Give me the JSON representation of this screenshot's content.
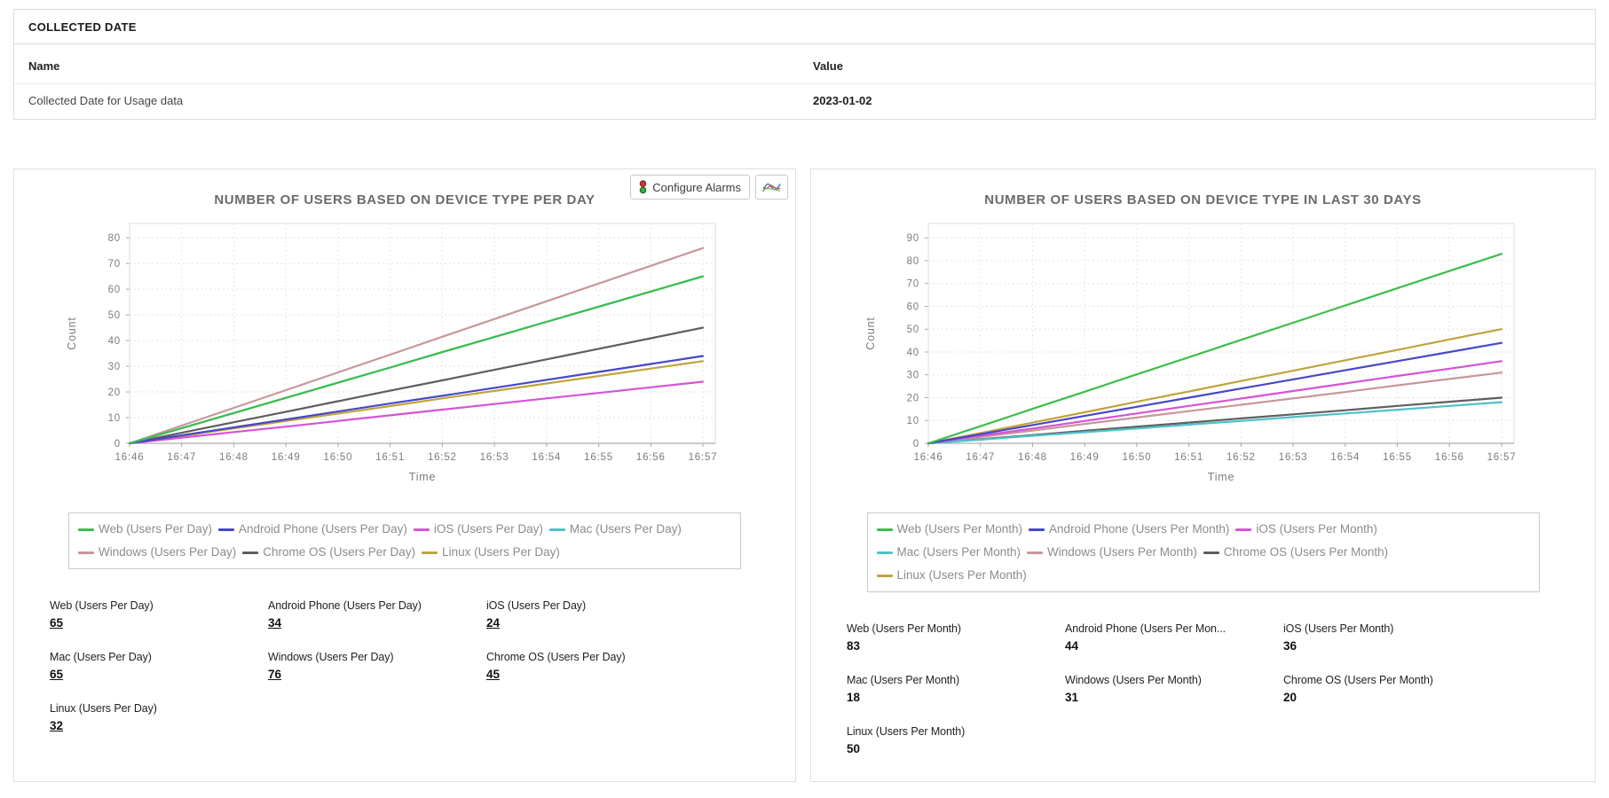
{
  "collected_date": {
    "title": "COLLECTED DATE",
    "name_header": "Name",
    "value_header": "Value",
    "row_name": "Collected Date for Usage data",
    "row_value": "2023-01-02"
  },
  "left_toolbar": {
    "configure_alarms_label": "Configure Alarms",
    "icons": [
      "traffic-light-icon",
      "line-chart-icon"
    ]
  },
  "chart_data": [
    {
      "type": "line",
      "title": "NUMBER OF USERS BASED ON DEVICE TYPE PER DAY",
      "xlabel": "Time",
      "ylabel": "Count",
      "x": [
        "16:46",
        "16:47",
        "16:48",
        "16:49",
        "16:50",
        "16:51",
        "16:52",
        "16:53",
        "16:54",
        "16:55",
        "16:56",
        "16:57"
      ],
      "ylim": [
        0,
        80
      ],
      "yticks": [
        0,
        10,
        20,
        30,
        40,
        50,
        60,
        70,
        80
      ],
      "grid": true,
      "legend_position": "bottom",
      "series": [
        {
          "name": "Web (Users Per Day)",
          "color": "#3dbd4d",
          "values": [
            0,
            5.9,
            11.8,
            17.7,
            23.6,
            29.5,
            35.5,
            41.4,
            47.3,
            53.2,
            59.1,
            65
          ]
        },
        {
          "name": "Android Phone (Users Per Day)",
          "color": "#4648c8",
          "values": [
            0,
            3.1,
            6.2,
            9.3,
            12.4,
            15.5,
            18.5,
            21.6,
            24.7,
            27.8,
            30.9,
            34
          ]
        },
        {
          "name": "iOS (Users Per Day)",
          "color": "#d653d6",
          "values": [
            0,
            2.2,
            4.4,
            6.5,
            8.7,
            10.9,
            13.1,
            15.3,
            17.5,
            19.6,
            21.8,
            24
          ]
        },
        {
          "name": "Mac (Users Per Day)",
          "color": "#4cc3c7",
          "values": [
            0,
            5.9,
            11.8,
            17.7,
            23.6,
            29.5,
            35.5,
            41.4,
            47.3,
            53.2,
            59.1,
            65
          ]
        },
        {
          "name": "Windows (Users Per Day)",
          "color": "#c7979a",
          "values": [
            0,
            6.9,
            13.8,
            20.7,
            27.6,
            34.5,
            41.5,
            48.4,
            55.3,
            62.2,
            69.1,
            76
          ]
        },
        {
          "name": "Chrome OS (Users Per Day)",
          "color": "#5e5e5e",
          "values": [
            0,
            4.1,
            8.2,
            12.3,
            16.4,
            20.5,
            24.5,
            28.6,
            32.7,
            36.8,
            40.9,
            45
          ]
        },
        {
          "name": "Linux (Users Per Day)",
          "color": "#c0a43c",
          "values": [
            0,
            2.9,
            5.8,
            8.7,
            11.6,
            14.5,
            17.5,
            20.4,
            23.3,
            26.2,
            29.1,
            32
          ]
        }
      ],
      "stats_underlined": true,
      "stats": [
        {
          "label": "Web (Users Per Day)",
          "value": "65"
        },
        {
          "label": "Android Phone (Users Per Day)",
          "value": "34"
        },
        {
          "label": "iOS (Users Per Day)",
          "value": "24"
        },
        {
          "label": "Mac (Users Per Day)",
          "value": "65"
        },
        {
          "label": "Windows (Users Per Day)",
          "value": "76"
        },
        {
          "label": "Chrome OS (Users Per Day)",
          "value": "45"
        },
        {
          "label": "Linux (Users Per Day)",
          "value": "32"
        }
      ]
    },
    {
      "type": "line",
      "title": "NUMBER OF USERS BASED ON DEVICE TYPE IN LAST 30 DAYS",
      "xlabel": "Time",
      "ylabel": "Count",
      "x": [
        "16:46",
        "16:47",
        "16:48",
        "16:49",
        "16:50",
        "16:51",
        "16:52",
        "16:53",
        "16:54",
        "16:55",
        "16:56",
        "16:57"
      ],
      "ylim": [
        0,
        90
      ],
      "yticks": [
        0,
        10,
        20,
        30,
        40,
        50,
        60,
        70,
        80,
        90
      ],
      "grid": true,
      "legend_position": "bottom",
      "series": [
        {
          "name": "Web (Users Per Month)",
          "color": "#3dbd4d",
          "values": [
            0,
            7.5,
            15.1,
            22.6,
            30.2,
            37.7,
            45.3,
            52.8,
            60.4,
            67.9,
            75.5,
            83
          ]
        },
        {
          "name": "Android Phone (Users Per Month)",
          "color": "#4648c8",
          "values": [
            0,
            4,
            8,
            12,
            16,
            20,
            24,
            28,
            32,
            36,
            40,
            44
          ]
        },
        {
          "name": "iOS (Users Per Month)",
          "color": "#d653d6",
          "values": [
            0,
            3.3,
            6.5,
            9.8,
            13.1,
            16.4,
            19.6,
            22.9,
            26.2,
            29.5,
            32.7,
            36
          ]
        },
        {
          "name": "Mac (Users Per Month)",
          "color": "#4cc3c7",
          "values": [
            0,
            1.6,
            3.3,
            4.9,
            6.5,
            8.2,
            9.8,
            11.5,
            13.1,
            14.7,
            16.4,
            18
          ]
        },
        {
          "name": "Windows (Users Per Month)",
          "color": "#c7979a",
          "values": [
            0,
            2.8,
            5.6,
            8.5,
            11.3,
            14.1,
            16.9,
            19.7,
            22.5,
            25.4,
            28.2,
            31
          ]
        },
        {
          "name": "Chrome OS (Users Per Month)",
          "color": "#5e5e5e",
          "values": [
            0,
            1.8,
            3.6,
            5.5,
            7.3,
            9.1,
            10.9,
            12.7,
            14.5,
            16.4,
            18.2,
            20
          ]
        },
        {
          "name": "Linux (Users Per Month)",
          "color": "#c0a43c",
          "values": [
            0,
            4.5,
            9.1,
            13.6,
            18.2,
            22.7,
            27.3,
            31.8,
            36.4,
            40.9,
            45.5,
            50
          ]
        }
      ],
      "stats_underlined": false,
      "stats": [
        {
          "label": "Web (Users Per Month)",
          "value": "83"
        },
        {
          "label": "Android Phone (Users Per Mon...",
          "value": "44"
        },
        {
          "label": "iOS (Users Per Month)",
          "value": "36"
        },
        {
          "label": "Mac (Users Per Month)",
          "value": "18"
        },
        {
          "label": "Windows (Users Per Month)",
          "value": "31"
        },
        {
          "label": "Chrome OS (Users Per Month)",
          "value": "20"
        },
        {
          "label": "Linux (Users Per Month)",
          "value": "50"
        }
      ]
    }
  ]
}
